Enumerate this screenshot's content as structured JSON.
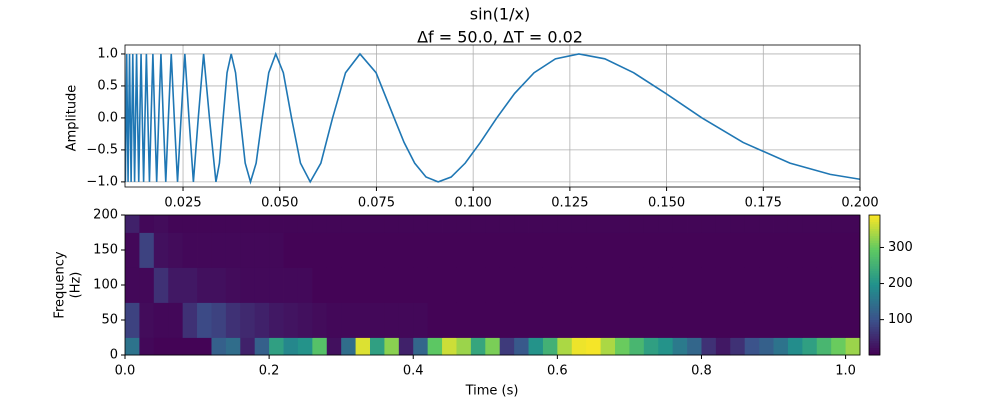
{
  "chart_data": [
    {
      "type": "line",
      "title": "sin(1/x)",
      "subtitle": "Δf = 50.0, ΔT = 0.02",
      "ylabel": "Amplitude",
      "color": "#1f77b4",
      "grid": true,
      "xlim": [
        0.01,
        0.2
      ],
      "ylim": [
        -1.08,
        1.14
      ],
      "xticks": [
        0.025,
        {
          "value": 0.05,
          "label": "0.050"
        },
        0.075,
        {
          "value": 0.1,
          "label": "0.100"
        },
        0.125,
        {
          "value": 0.15,
          "label": "0.150"
        },
        0.175,
        {
          "value": 0.2,
          "label": "0.200"
        }
      ],
      "yticks": [
        {
          "value": -1,
          "label": "−1.0"
        },
        {
          "value": -0.5,
          "label": "−0.5"
        },
        {
          "value": 0,
          "label": "0.0"
        },
        {
          "value": 0.5,
          "label": "0.5"
        },
        {
          "value": 1,
          "label": "1.0"
        }
      ],
      "x": [
        0.01,
        0.0101,
        0.01027,
        0.01044,
        0.01061,
        0.01079,
        0.01098,
        0.01117,
        0.01137,
        0.01158,
        0.01179,
        0.01201,
        0.01224,
        0.01248,
        0.01273,
        0.01299,
        0.01326,
        0.01355,
        0.01384,
        0.01415,
        0.01447,
        0.01481,
        0.01516,
        0.01553,
        0.01592,
        0.01632,
        0.01675,
        0.01721,
        0.01768,
        0.01819,
        0.01872,
        0.01929,
        0.01989,
        0.02054,
        0.02122,
        0.02195,
        0.02274,
        0.02358,
        0.02449,
        0.02547,
        0.02653,
        0.02768,
        0.02894,
        0.03032,
        0.03183,
        0.03351,
        0.03441,
        0.03537,
        0.03638,
        0.03745,
        0.03858,
        0.03979,
        0.04107,
        0.04244,
        0.0439,
        0.04547,
        0.04716,
        0.04897,
        0.05093,
        0.05305,
        0.05536,
        0.05788,
        0.06063,
        0.06366,
        0.06701,
        0.07074,
        0.0749,
        0.07958,
        0.08214,
        0.08488,
        0.08781,
        0.09095,
        0.09431,
        0.09794,
        0.10186,
        0.1061,
        0.11072,
        0.11575,
        0.12126,
        0.12732,
        0.13403,
        0.14147,
        0.14979,
        0.15915,
        0.16978,
        0.18189,
        0.19231,
        0.2
      ],
      "values": [
        -0.506,
        -1,
        0,
        1,
        0,
        -1,
        0,
        1,
        0,
        -1,
        0,
        1,
        0,
        -1,
        0,
        1,
        0,
        -1,
        0,
        1,
        0,
        -1,
        0,
        1,
        0,
        -1,
        0,
        1,
        0,
        -1,
        0,
        1,
        0,
        -1,
        0,
        1,
        0,
        -1,
        0,
        1,
        0,
        -1,
        0,
        1,
        0,
        -1,
        -0.707,
        0,
        0.707,
        1,
        0.707,
        0,
        -0.707,
        -1,
        -0.707,
        0,
        0.707,
        1,
        0.707,
        0,
        -0.707,
        -1,
        -0.707,
        0,
        0.707,
        1,
        0.707,
        0,
        -0.383,
        -0.707,
        -0.924,
        -1,
        -0.924,
        -0.707,
        -0.383,
        0,
        0.383,
        0.707,
        0.924,
        1,
        0.924,
        0.707,
        0.383,
        0,
        -0.383,
        -0.707,
        -0.883,
        -0.959
      ]
    },
    {
      "type": "heatmap",
      "xlabel": "Time (s)",
      "ylabel": [
        "Frequency",
        "(Hz)"
      ],
      "xlim": [
        0,
        1.02
      ],
      "ylim": [
        0,
        200
      ],
      "clim": [
        2,
        390
      ],
      "xticks": [
        {
          "value": 0,
          "label": "0.0"
        },
        0.2,
        0.4,
        0.6,
        0.8,
        {
          "value": 1,
          "label": "1.0"
        }
      ],
      "yticks": [
        0,
        50,
        100,
        150,
        200
      ],
      "cticks": [
        100,
        200,
        300
      ],
      "xbins": [
        0,
        0.02,
        0.04,
        0.06,
        0.08,
        0.1,
        0.12,
        0.14,
        0.16,
        0.18,
        0.2,
        0.22,
        0.24,
        0.26,
        0.28,
        0.3,
        0.32,
        0.34,
        0.36,
        0.38,
        0.4,
        0.42,
        0.44,
        0.46,
        0.48,
        0.5,
        0.52,
        0.54,
        0.56,
        0.58,
        0.6,
        0.62,
        0.64,
        0.66,
        0.68,
        0.7,
        0.72,
        0.74,
        0.76,
        0.78,
        0.8,
        0.82,
        0.84,
        0.86,
        0.88,
        0.9,
        0.92,
        0.94,
        0.96,
        0.98,
        1,
        1.02
      ],
      "ybins": [
        0,
        25,
        75,
        125,
        175,
        200
      ],
      "values": [
        [
          150,
          10,
          5,
          5,
          5,
          5,
          120,
          140,
          40,
          120,
          220,
          180,
          200,
          280,
          20,
          140,
          370,
          220,
          320,
          40,
          130,
          290,
          360,
          330,
          230,
          310,
          70,
          110,
          200,
          250,
          340,
          380,
          385,
          340,
          300,
          260,
          220,
          200,
          160,
          130,
          60,
          30,
          60,
          100,
          120,
          150,
          190,
          220,
          260,
          300,
          330
        ],
        [
          80,
          15,
          10,
          10,
          60,
          90,
          80,
          60,
          50,
          40,
          30,
          25,
          20,
          15,
          10,
          10,
          10,
          10,
          10,
          10,
          10,
          5,
          5,
          5,
          5,
          5,
          5,
          5,
          5,
          5,
          5,
          5,
          5,
          5,
          5,
          5,
          5,
          5,
          5,
          5,
          5,
          5,
          5,
          5,
          5,
          5,
          5,
          5,
          5,
          5,
          5
        ],
        [
          10,
          10,
          60,
          30,
          30,
          20,
          20,
          15,
          12,
          12,
          12,
          12,
          12,
          5,
          5,
          5,
          5,
          5,
          5,
          5,
          5,
          5,
          5,
          5,
          5,
          5,
          5,
          5,
          5,
          5,
          5,
          5,
          5,
          5,
          5,
          5,
          5,
          5,
          5,
          5,
          5,
          5,
          5,
          5,
          5,
          5,
          5,
          5,
          5,
          5,
          5
        ],
        [
          10,
          80,
          20,
          15,
          10,
          10,
          10,
          10,
          10,
          10,
          10,
          5,
          5,
          5,
          5,
          5,
          5,
          5,
          5,
          5,
          5,
          5,
          5,
          5,
          5,
          5,
          5,
          5,
          5,
          5,
          5,
          5,
          5,
          5,
          5,
          5,
          5,
          5,
          5,
          5,
          5,
          5,
          5,
          5,
          5,
          5,
          5,
          5,
          5,
          5,
          5
        ],
        [
          40,
          10,
          15,
          8,
          8,
          8,
          8,
          8,
          8,
          8,
          8,
          8,
          8,
          8,
          8,
          8,
          8,
          8,
          8,
          8,
          8,
          8,
          8,
          8,
          8,
          8,
          8,
          8,
          8,
          8,
          8,
          8,
          8,
          8,
          8,
          8,
          8,
          8,
          8,
          8,
          8,
          8,
          8,
          8,
          8,
          8,
          8,
          8,
          8,
          8,
          8
        ]
      ]
    }
  ]
}
